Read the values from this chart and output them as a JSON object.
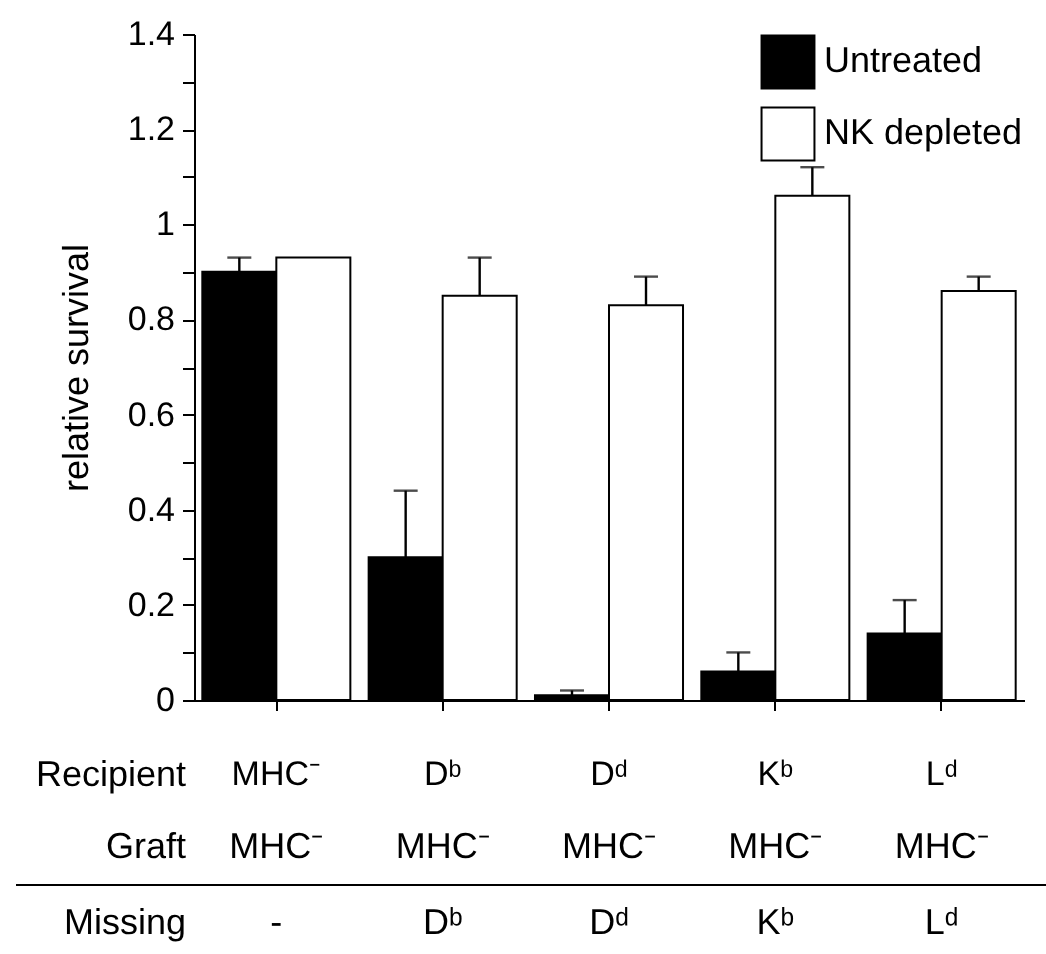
{
  "chart_data": {
    "type": "bar",
    "ylabel": "relative survival",
    "categories": [
      "MHC⁻",
      "Dᵇ",
      "Dᵈ",
      "Kᵇ",
      "Lᵈ"
    ],
    "series": [
      {
        "name": "Untreated",
        "color": "#000000",
        "values": [
          0.9,
          0.3,
          0.01,
          0.06,
          0.14
        ],
        "errors": [
          [
            0.9,
            0.93
          ],
          [
            0.3,
            0.44
          ],
          [
            0.01,
            0.02
          ],
          [
            0.06,
            0.1
          ],
          [
            0.14,
            0.21
          ]
        ]
      },
      {
        "name": "NK depleted",
        "color": "#ffffff",
        "values": [
          0.93,
          0.85,
          0.83,
          1.06,
          0.86
        ],
        "errors": [
          null,
          [
            0.85,
            0.93
          ],
          [
            0.83,
            0.89
          ],
          [
            1.06,
            1.12
          ],
          [
            0.86,
            0.89
          ]
        ]
      }
    ],
    "ylim": [
      0,
      1.4
    ],
    "yticks": [
      0,
      {
        "value": 0.1,
        "label": null
      },
      0.2,
      {
        "value": 0.3,
        "label": null
      },
      0.4,
      {
        "value": 0.5,
        "label": null
      },
      0.6,
      {
        "value": 0.7,
        "label": null
      },
      0.8,
      {
        "value": 0.9,
        "label": null
      },
      1,
      {
        "value": 1.1,
        "label": null
      },
      1.2,
      {
        "value": 1.3,
        "label": null
      },
      1.4
    ],
    "legend": "top right",
    "annotations": [
      "Recipient",
      "Graft",
      "MHC⁻",
      "MHC⁻",
      "MHC⁻",
      "MHC⁻",
      "MHC⁻",
      "Missing",
      "-",
      "Dᵇ",
      "Dᵈ",
      "Kᵇ",
      "Lᵈ"
    ]
  }
}
